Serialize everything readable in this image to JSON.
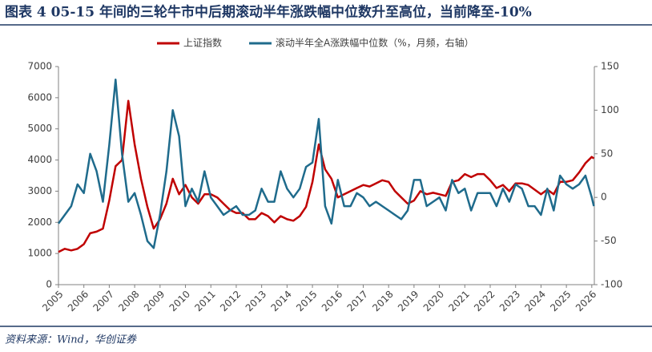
{
  "chart_data": {
    "type": "line",
    "title": "图表 4   05-15 年间的三轮牛市中后期滚动半年涨跌幅中位数升至高位，当前降至-10%",
    "source": "资料来源：Wind，华创证券",
    "x": [
      2005,
      2005.25,
      2005.5,
      2005.75,
      2006,
      2006.25,
      2006.5,
      2006.75,
      2007,
      2007.25,
      2007.5,
      2007.75,
      2008,
      2008.25,
      2008.5,
      2008.75,
      2009,
      2009.25,
      2009.5,
      2009.75,
      2010,
      2010.25,
      2010.5,
      2010.75,
      2011,
      2011.25,
      2011.5,
      2011.75,
      2012,
      2012.25,
      2012.5,
      2012.75,
      2013,
      2013.25,
      2013.5,
      2013.75,
      2014,
      2014.25,
      2014.5,
      2014.75,
      2015,
      2015.25,
      2015.5,
      2015.75,
      2016,
      2016.25,
      2016.5,
      2016.75,
      2017,
      2017.25,
      2017.5,
      2017.75,
      2018,
      2018.25,
      2018.5,
      2018.75,
      2019,
      2019.25,
      2019.5,
      2019.75,
      2020,
      2020.25,
      2020.5,
      2020.75,
      2021,
      2021.25,
      2021.5,
      2021.75,
      2022,
      2022.25,
      2022.5,
      2022.75,
      2023,
      2023.25,
      2023.5,
      2023.75,
      2024,
      2024.25,
      2024.5,
      2024.75,
      2025,
      2025.25,
      2025.5,
      2025.75,
      2026,
      2026.08
    ],
    "series": [
      {
        "name": "上证指数",
        "color": "#c00000",
        "values": [
          1050,
          1150,
          1100,
          1150,
          1300,
          1650,
          1700,
          1800,
          2700,
          3800,
          4000,
          5900,
          4500,
          3400,
          2500,
          1800,
          2100,
          2600,
          3400,
          2900,
          3200,
          2800,
          2600,
          2900,
          2900,
          2800,
          2600,
          2400,
          2300,
          2300,
          2100,
          2100,
          2300,
          2200,
          2000,
          2200,
          2100,
          2050,
          2200,
          2500,
          3300,
          4500,
          3700,
          3400,
          2800,
          2900,
          3000,
          3100,
          3200,
          3150,
          3250,
          3350,
          3300,
          3000,
          2800,
          2600,
          2700,
          3000,
          2900,
          2950,
          2900,
          2850,
          3300,
          3350,
          3550,
          3450,
          3550,
          3550,
          3350,
          3100,
          3200,
          3000,
          3250,
          3250,
          3200,
          3050,
          2900,
          3050,
          2900,
          3300,
          3300,
          3350,
          3600,
          3900,
          4100,
          4050
        ]
      },
      {
        "name": "滚动半年全A涨跌幅中位数（%，月频，右轴）",
        "color": "#1f6b8c",
        "axis": "y2",
        "values": [
          -30,
          -20,
          -10,
          15,
          5,
          50,
          30,
          -5,
          60,
          135,
          50,
          -5,
          5,
          -20,
          -50,
          -58,
          -20,
          30,
          100,
          70,
          -10,
          10,
          -5,
          30,
          0,
          -10,
          -20,
          -15,
          -10,
          -20,
          -20,
          -15,
          10,
          -5,
          -5,
          30,
          10,
          0,
          10,
          35,
          40,
          90,
          -10,
          -30,
          20,
          -10,
          -10,
          5,
          0,
          -10,
          -5,
          -10,
          -15,
          -20,
          -25,
          -15,
          20,
          20,
          -10,
          -5,
          0,
          -15,
          20,
          5,
          10,
          -15,
          5,
          5,
          5,
          -10,
          10,
          -5,
          15,
          10,
          -10,
          -10,
          -20,
          10,
          -15,
          25,
          15,
          10,
          15,
          25,
          0,
          -10
        ]
      }
    ],
    "xlim": [
      2005,
      2026.1
    ],
    "xticks": [
      2005,
      2006,
      2007,
      2008,
      2009,
      2010,
      2011,
      2012,
      2013,
      2014,
      2015,
      2016,
      2017,
      2018,
      2019,
      2020,
      2021,
      2022,
      2023,
      2024,
      2025,
      2026
    ],
    "ylim": [
      0,
      7000
    ],
    "yticks": [
      0,
      1000,
      2000,
      3000,
      4000,
      5000,
      6000,
      7000
    ],
    "y2lim": [
      -100,
      150
    ],
    "y2ticks": [
      -100,
      -50,
      0,
      50,
      100,
      150
    ]
  }
}
